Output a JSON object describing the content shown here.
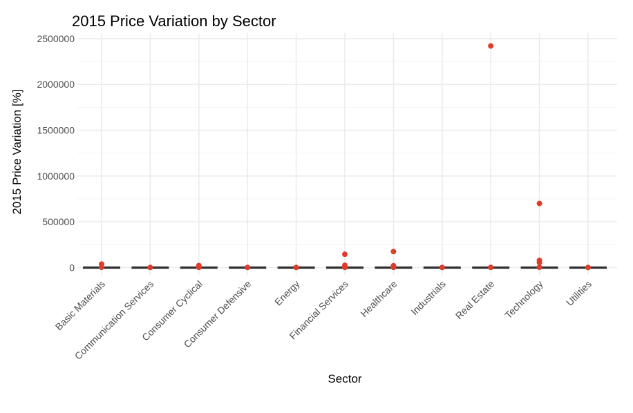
{
  "chart_data": {
    "type": "scatter",
    "title": "2015 Price Variation by Sector",
    "xlabel": "Sector",
    "ylabel": "2015 Price Variation [%]",
    "ylim": [
      -80000,
      2560000
    ],
    "yticks": [
      0,
      500000,
      1000000,
      1500000,
      2000000,
      2500000
    ],
    "ytick_labels": [
      "0",
      "500000",
      "1000000",
      "1500000",
      "2000000",
      "2500000"
    ],
    "categories": [
      "Basic Materials",
      "Communication Services",
      "Consumer Cyclical",
      "Consumer Defensive",
      "Energy",
      "Financial Services",
      "Healthcare",
      "Industrials",
      "Real Estate",
      "Technology",
      "Utilities"
    ],
    "grid": true,
    "point_color": "#e03c2c",
    "median_color": "#333333",
    "medians": [
      0,
      0,
      0,
      0,
      0,
      0,
      0,
      0,
      0,
      0,
      0
    ],
    "series": [
      {
        "points": [
          {
            "x": "Basic Materials",
            "y": 38000
          },
          {
            "x": "Basic Materials",
            "y": 3000
          },
          {
            "x": "Communication Services",
            "y": 1000
          },
          {
            "x": "Consumer Cyclical",
            "y": 22000
          },
          {
            "x": "Consumer Cyclical",
            "y": 2000
          },
          {
            "x": "Consumer Defensive",
            "y": 1000
          },
          {
            "x": "Energy",
            "y": 1000
          },
          {
            "x": "Financial Services",
            "y": 145000
          },
          {
            "x": "Financial Services",
            "y": 25000
          },
          {
            "x": "Financial Services",
            "y": 2000
          },
          {
            "x": "Healthcare",
            "y": 175000
          },
          {
            "x": "Healthcare",
            "y": 20000
          },
          {
            "x": "Healthcare",
            "y": 2000
          },
          {
            "x": "Industrials",
            "y": 1000
          },
          {
            "x": "Real Estate",
            "y": 2420000
          },
          {
            "x": "Real Estate",
            "y": 2000
          },
          {
            "x": "Technology",
            "y": 700000
          },
          {
            "x": "Technology",
            "y": 78000
          },
          {
            "x": "Technology",
            "y": 55000
          },
          {
            "x": "Technology",
            "y": 3000
          },
          {
            "x": "Utilities",
            "y": 1000
          }
        ]
      }
    ]
  }
}
